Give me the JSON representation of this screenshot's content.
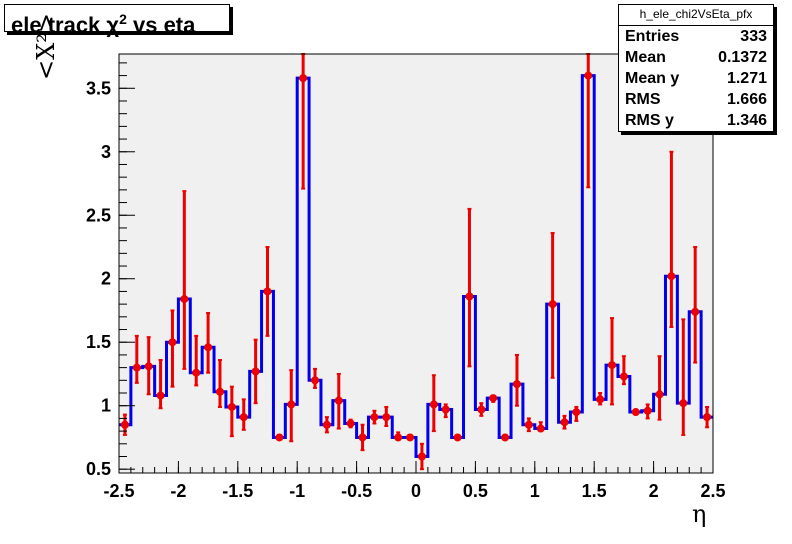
{
  "title": {
    "text": "ele track χ",
    "sup": "2",
    "suffix": " vs eta"
  },
  "stats": {
    "name": "h_ele_chi2VsEta_pfx",
    "rows": [
      {
        "label": "Entries",
        "value": "333"
      },
      {
        "label": "Mean",
        "value": "0.1372"
      },
      {
        "label": "Mean y",
        "value": "1.271"
      },
      {
        "label": "RMS",
        "value": "1.666"
      },
      {
        "label": "RMS y",
        "value": "1.346"
      }
    ]
  },
  "colors": {
    "frame_bg": "#f0f0f0",
    "histogram": "#0000ee",
    "markers": "#ee0000",
    "axes": "#000000"
  },
  "chart_data": {
    "type": "line",
    "title": "ele track χ2 vs eta",
    "xlabel": "η",
    "ylabel": "<X²>",
    "xlim": [
      -2.5,
      2.5
    ],
    "ylim": [
      0.47,
      3.77
    ],
    "x_ticks": [
      "-2.5",
      "-2",
      "-1.5",
      "-1",
      "-0.5",
      "0",
      "0.5",
      "1",
      "1.5",
      "2",
      "2.5"
    ],
    "y_ticks": [
      "0.5",
      "1",
      "1.5",
      "2",
      "2.5",
      "3",
      "3.5"
    ],
    "bin_edges": [
      -2.5,
      -2.4,
      -2.3,
      -2.2,
      -2.1,
      -2.0,
      -1.9,
      -1.8,
      -1.7,
      -1.6,
      -1.5,
      -1.4,
      -1.3,
      -1.2,
      -1.1,
      -1.0,
      -0.9,
      -0.8,
      -0.7,
      -0.6,
      -0.5,
      -0.4,
      -0.3,
      -0.2,
      -0.1,
      0.0,
      0.1,
      0.2,
      0.3,
      0.4,
      0.5,
      0.6,
      0.7,
      0.8,
      0.9,
      1.0,
      1.1,
      1.2,
      1.3,
      1.4,
      1.5,
      1.6,
      1.7,
      1.8,
      1.9,
      2.0,
      2.1,
      2.2,
      2.3,
      2.4,
      2.5
    ],
    "series": [
      {
        "values": [
          0.85,
          1.3,
          1.31,
          1.08,
          1.5,
          1.84,
          1.26,
          1.46,
          1.11,
          0.99,
          0.91,
          1.27,
          1.9,
          0.75,
          1.01,
          3.58,
          1.2,
          0.85,
          1.04,
          0.86,
          0.75,
          0.91,
          0.91,
          0.75,
          0.75,
          0.6,
          1.01,
          0.97,
          0.75,
          1.86,
          0.97,
          1.06,
          0.75,
          1.17,
          0.85,
          0.82,
          1.8,
          0.87,
          0.95,
          3.6,
          1.05,
          1.32,
          1.23,
          0.95,
          0.96,
          1.09,
          2.02,
          1.02,
          1.74,
          0.91
        ],
        "errors_low": [
          0.08,
          0.12,
          0.22,
          0.1,
          0.35,
          0.55,
          0.1,
          0.2,
          0.12,
          0.23,
          0.1,
          0.25,
          0.35,
          0.02,
          0.29,
          0.87,
          0.06,
          0.06,
          0.22,
          0.03,
          0.1,
          0.05,
          0.07,
          0.02,
          0.0,
          0.1,
          0.21,
          0.06,
          0.02,
          0.55,
          0.05,
          0.03,
          0.02,
          0.17,
          0.05,
          0.02,
          0.58,
          0.05,
          0.07,
          0.88,
          0.04,
          0.31,
          0.06,
          0.02,
          0.06,
          0.2,
          0.4,
          0.25,
          0.4,
          0.08
        ],
        "errors_high": [
          0.08,
          0.25,
          0.23,
          0.28,
          0.25,
          0.85,
          0.29,
          0.27,
          0.25,
          0.16,
          0.14,
          0.25,
          0.35,
          0.02,
          0.27,
          0.19,
          0.09,
          0.06,
          0.21,
          0.03,
          0.1,
          0.05,
          0.08,
          0.04,
          0.02,
          0.1,
          0.23,
          0.04,
          0.02,
          0.69,
          0.05,
          0.02,
          0.02,
          0.23,
          0.05,
          0.05,
          0.56,
          0.05,
          0.04,
          0.17,
          0.05,
          0.37,
          0.16,
          0.02,
          0.05,
          0.3,
          0.98,
          0.66,
          0.51,
          0.08
        ]
      }
    ],
    "grid": false,
    "legend": "top-right"
  }
}
